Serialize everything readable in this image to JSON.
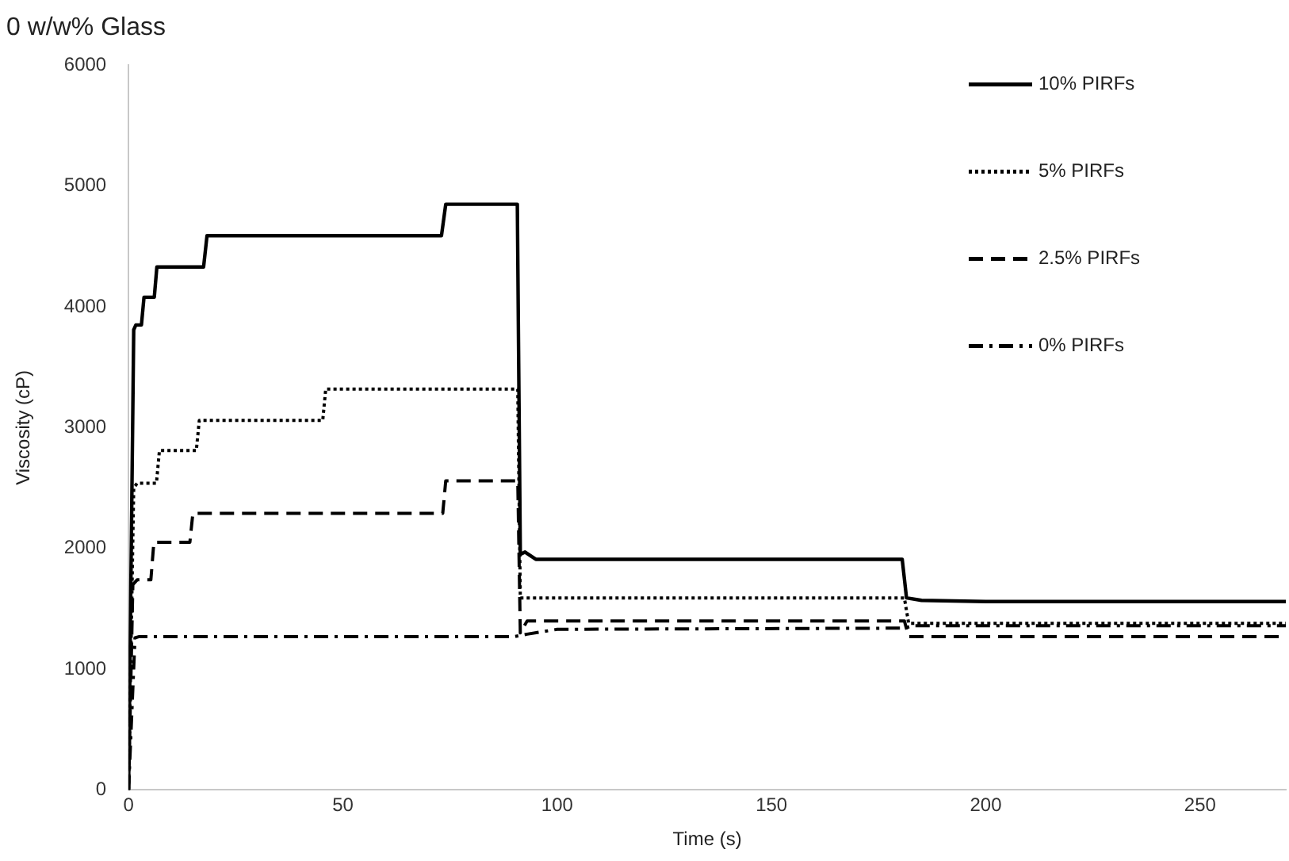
{
  "chart_data": {
    "type": "line",
    "title": "0 w/w% Glass",
    "xlabel": "Time (s)",
    "ylabel": "Viscosity (cP)",
    "xlim": [
      0,
      270
    ],
    "xticks": [
      0,
      50,
      100,
      150,
      200,
      250
    ],
    "ylim": [
      0,
      6000
    ],
    "yticks": [
      0,
      1000,
      2000,
      3000,
      4000,
      5000,
      6000
    ],
    "grid": false,
    "legend": "top right",
    "marker": "none",
    "series": [
      {
        "name": "10% PIRFs",
        "color": "#000000",
        "line_style": "solid",
        "x": [
          0,
          1.2,
          1.7,
          3,
          3.6,
          6,
          6.6,
          17.5,
          18.3,
          73,
          74,
          90.7,
          91.4,
          92.5,
          95,
          180.5,
          181.5,
          185,
          200,
          270
        ],
        "values": [
          0,
          3810,
          3850,
          3850,
          4080,
          4080,
          4330,
          4330,
          4590,
          4590,
          4850,
          4850,
          1950,
          1970,
          1910,
          1910,
          1590,
          1570,
          1560,
          1560
        ]
      },
      {
        "name": "5% PIRFs",
        "color": "#000000",
        "line_style": "dotted",
        "x": [
          0,
          1.2,
          2,
          6.5,
          7.2,
          15.8,
          16.5,
          45.3,
          46,
          90.8,
          91.4,
          181,
          182,
          270
        ],
        "values": [
          0,
          2500,
          2540,
          2540,
          2810,
          2810,
          3060,
          3060,
          3320,
          3320,
          1590,
          1590,
          1380,
          1380
        ]
      },
      {
        "name": "2.5% PIRFs",
        "color": "#000000",
        "line_style": "dashed",
        "x": [
          0,
          1,
          2,
          5.2,
          5.9,
          14.3,
          15,
          73.3,
          74,
          90.8,
          91.4,
          93,
          181,
          182,
          270
        ],
        "values": [
          0,
          1700,
          1740,
          1740,
          2050,
          2050,
          2290,
          2290,
          2560,
          2560,
          1300,
          1400,
          1400,
          1270,
          1270
        ]
      },
      {
        "name": "0% PIRFs",
        "color": "#000000",
        "line_style": "dashdot",
        "x": [
          0,
          1.5,
          2.5,
          90,
          93,
          100,
          181,
          183,
          270
        ],
        "values": [
          0,
          1260,
          1270,
          1270,
          1290,
          1330,
          1340,
          1360,
          1360
        ]
      }
    ]
  }
}
